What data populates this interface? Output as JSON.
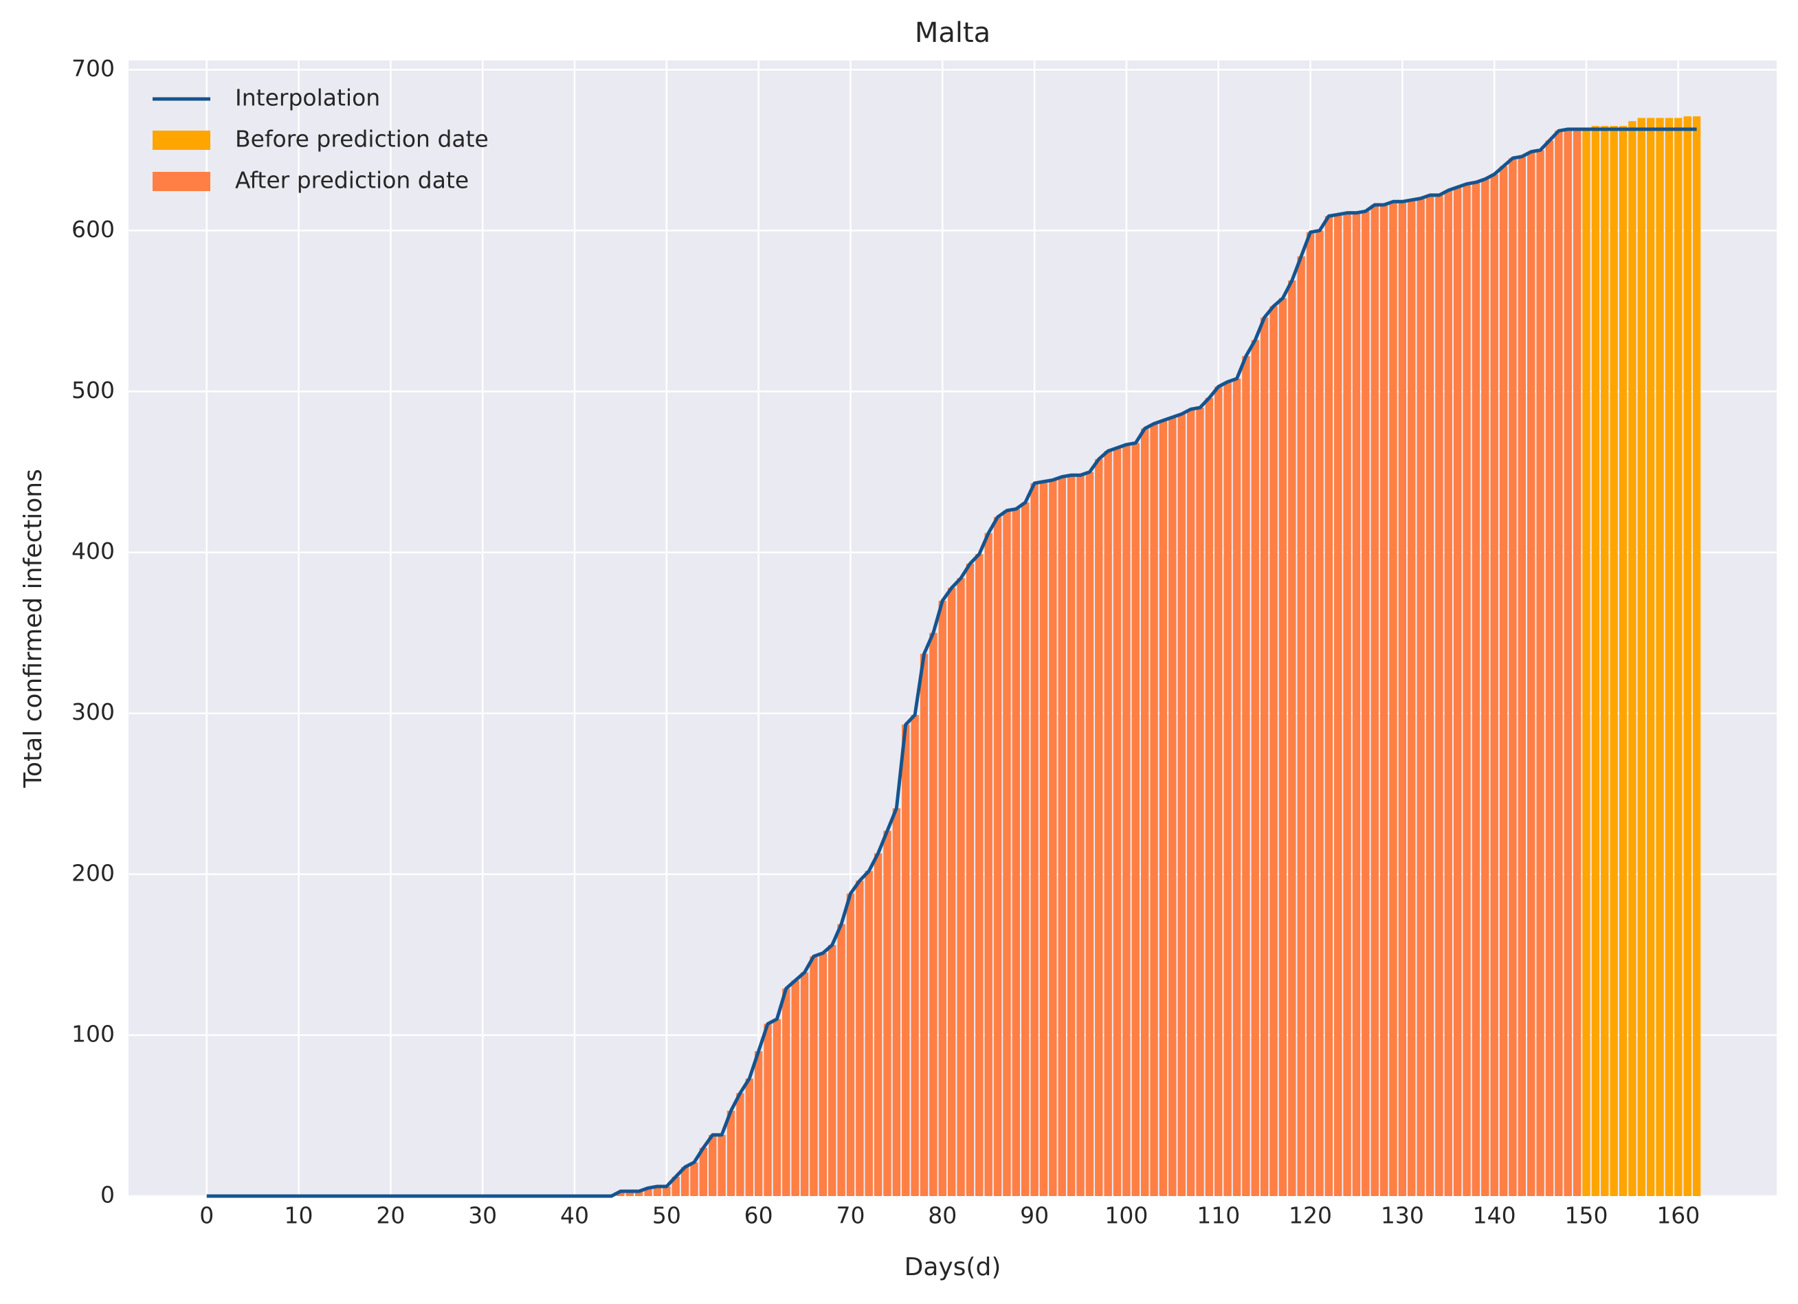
{
  "chart_data": {
    "type": "bar",
    "title": "Malta",
    "xlabel": "Days(d)",
    "ylabel": "Total confirmed infections",
    "x": [
      0,
      1,
      2,
      3,
      4,
      5,
      6,
      7,
      8,
      9,
      10,
      11,
      12,
      13,
      14,
      15,
      16,
      17,
      18,
      19,
      20,
      21,
      22,
      23,
      24,
      25,
      26,
      27,
      28,
      29,
      30,
      31,
      32,
      33,
      34,
      35,
      36,
      37,
      38,
      39,
      40,
      41,
      42,
      43,
      44,
      45,
      46,
      47,
      48,
      49,
      50,
      51,
      52,
      53,
      54,
      55,
      56,
      57,
      58,
      59,
      60,
      61,
      62,
      63,
      64,
      65,
      66,
      67,
      68,
      69,
      70,
      71,
      72,
      73,
      74,
      75,
      76,
      77,
      78,
      79,
      80,
      81,
      82,
      83,
      84,
      85,
      86,
      87,
      88,
      89,
      90,
      91,
      92,
      93,
      94,
      95,
      96,
      97,
      98,
      99,
      100,
      101,
      102,
      103,
      104,
      105,
      106,
      107,
      108,
      109,
      110,
      111,
      112,
      113,
      114,
      115,
      116,
      117,
      118,
      119,
      120,
      121,
      122,
      123,
      124,
      125,
      126,
      127,
      128,
      129,
      130,
      131,
      132,
      133,
      134,
      135,
      136,
      137,
      138,
      139,
      140,
      141,
      142,
      143,
      144,
      145,
      146,
      147,
      148,
      149,
      150,
      151,
      152,
      153,
      154,
      155,
      156,
      157,
      158,
      159,
      160,
      161,
      162
    ],
    "series": [
      {
        "name": "Interpolation",
        "type": "line",
        "color": "#15548f",
        "values": [
          0,
          0,
          0,
          0,
          0,
          0,
          0,
          0,
          0,
          0,
          0,
          0,
          0,
          0,
          0,
          0,
          0,
          0,
          0,
          0,
          0,
          0,
          0,
          0,
          0,
          0,
          0,
          0,
          0,
          0,
          0,
          0,
          0,
          0,
          0,
          0,
          0,
          0,
          0,
          0,
          0,
          0,
          0,
          0,
          0,
          3,
          3,
          3,
          5,
          6,
          6,
          12,
          18,
          21,
          30,
          38,
          38,
          53,
          64,
          73,
          90,
          107,
          110,
          129,
          134,
          139,
          149,
          151,
          156,
          169,
          188,
          196,
          202,
          213,
          227,
          241,
          293,
          299,
          337,
          350,
          370,
          378,
          384,
          393,
          399,
          412,
          422,
          426,
          427,
          431,
          443,
          444,
          445,
          447,
          448,
          448,
          450,
          458,
          463,
          465,
          467,
          468,
          477,
          480,
          482,
          484,
          486,
          489,
          490,
          496,
          503,
          506,
          508,
          522,
          532,
          546,
          553,
          558,
          569,
          584,
          599,
          600,
          609,
          610,
          611,
          611,
          612,
          616,
          616,
          618,
          618,
          619,
          620,
          622,
          622,
          625,
          627,
          629,
          630,
          632,
          635,
          640,
          645,
          646,
          649,
          650,
          656,
          662,
          663,
          663,
          663,
          663,
          663,
          663,
          663,
          663,
          663,
          663,
          663,
          663,
          663,
          663,
          663
        ]
      },
      {
        "name": "Before prediction date",
        "type": "bar",
        "color": "#ffa500",
        "values": [
          null,
          null,
          null,
          null,
          null,
          null,
          null,
          null,
          null,
          null,
          null,
          null,
          null,
          null,
          null,
          null,
          null,
          null,
          null,
          null,
          null,
          null,
          null,
          null,
          null,
          null,
          null,
          null,
          null,
          null,
          null,
          null,
          null,
          null,
          null,
          null,
          null,
          null,
          null,
          null,
          null,
          null,
          null,
          null,
          null,
          null,
          null,
          null,
          null,
          null,
          null,
          null,
          null,
          null,
          null,
          null,
          null,
          null,
          null,
          null,
          null,
          null,
          null,
          null,
          null,
          null,
          null,
          null,
          null,
          null,
          null,
          null,
          null,
          null,
          null,
          null,
          null,
          null,
          null,
          null,
          null,
          null,
          null,
          null,
          null,
          null,
          null,
          null,
          null,
          null,
          null,
          null,
          null,
          null,
          null,
          null,
          null,
          null,
          null,
          null,
          null,
          null,
          null,
          null,
          null,
          null,
          null,
          null,
          null,
          null,
          null,
          null,
          null,
          null,
          null,
          null,
          null,
          null,
          null,
          null,
          null,
          null,
          null,
          null,
          null,
          null,
          null,
          null,
          null,
          null,
          null,
          null,
          null,
          null,
          null,
          null,
          null,
          null,
          null,
          null,
          null,
          null,
          null,
          null,
          null,
          null,
          null,
          null,
          null,
          null,
          663,
          665,
          665,
          665,
          665,
          668,
          670,
          670,
          670,
          670,
          670,
          671,
          671
        ]
      },
      {
        "name": "After prediction date",
        "type": "bar",
        "color": "#ff7f45",
        "values": [
          0,
          0,
          0,
          0,
          0,
          0,
          0,
          0,
          0,
          0,
          0,
          0,
          0,
          0,
          0,
          0,
          0,
          0,
          0,
          0,
          0,
          0,
          0,
          0,
          0,
          0,
          0,
          0,
          0,
          0,
          0,
          0,
          0,
          0,
          0,
          0,
          0,
          0,
          0,
          0,
          0,
          0,
          0,
          0,
          0,
          3,
          3,
          3,
          5,
          6,
          6,
          12,
          18,
          21,
          30,
          38,
          38,
          53,
          64,
          73,
          90,
          107,
          110,
          129,
          134,
          139,
          149,
          151,
          156,
          169,
          188,
          196,
          202,
          213,
          227,
          241,
          293,
          299,
          337,
          350,
          370,
          378,
          384,
          393,
          399,
          412,
          422,
          426,
          427,
          431,
          443,
          444,
          445,
          447,
          448,
          448,
          450,
          458,
          463,
          465,
          467,
          468,
          477,
          480,
          482,
          484,
          486,
          489,
          490,
          496,
          503,
          506,
          508,
          522,
          532,
          546,
          553,
          558,
          569,
          584,
          599,
          600,
          609,
          610,
          611,
          611,
          612,
          616,
          616,
          618,
          618,
          619,
          620,
          622,
          622,
          625,
          627,
          629,
          630,
          632,
          635,
          640,
          645,
          646,
          649,
          650,
          656,
          662,
          663,
          663,
          null,
          null,
          null,
          null,
          null,
          null,
          null,
          null,
          null,
          null,
          null,
          null,
          null
        ]
      }
    ],
    "xlim": [
      -8.5,
      170.7
    ],
    "ylim": [
      0,
      705.7
    ],
    "xticks": [
      0,
      10,
      20,
      30,
      40,
      50,
      60,
      70,
      80,
      90,
      100,
      110,
      120,
      130,
      140,
      150,
      160
    ],
    "yticks": [
      0,
      100,
      200,
      300,
      400,
      500,
      600,
      700
    ],
    "grid": true,
    "legend": "upper left"
  }
}
